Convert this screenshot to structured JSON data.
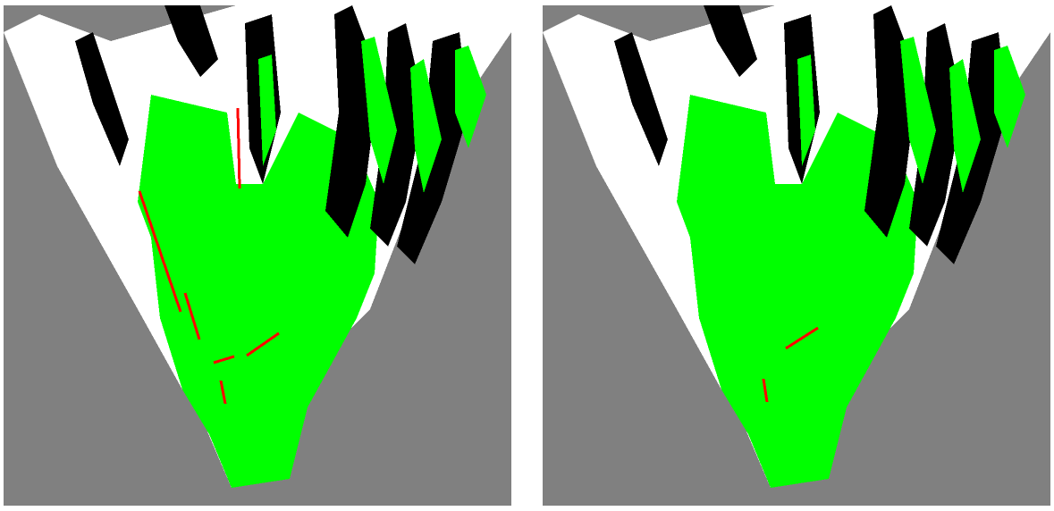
{
  "figure": {
    "colors": {
      "unknown": "#808080",
      "free": "#ffffff",
      "occupied": "#000000",
      "traversable": "#00ff00",
      "detected_line": "#ff0000"
    },
    "panels": [
      {
        "id": "left",
        "shows_detected_lines": true,
        "detected_line_count": 6
      },
      {
        "id": "right",
        "shows_detected_lines": true,
        "detected_line_count": 2
      }
    ]
  }
}
